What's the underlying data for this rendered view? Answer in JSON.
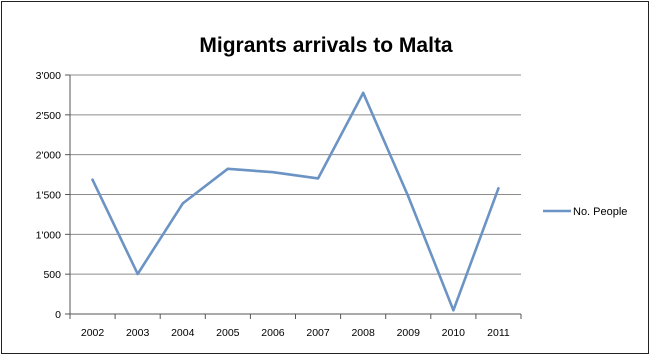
{
  "chart_data": {
    "type": "line",
    "title": "Migrants arrivals to Malta",
    "xlabel": "",
    "ylabel": "",
    "categories": [
      "2002",
      "2003",
      "2004",
      "2005",
      "2006",
      "2007",
      "2008",
      "2009",
      "2010",
      "2011"
    ],
    "series": [
      {
        "name": "No. People",
        "values": [
          1686,
          502,
          1388,
          1822,
          1780,
          1702,
          2775,
          1475,
          47,
          1577
        ]
      }
    ],
    "ylim": [
      0,
      3000
    ],
    "yticks": [
      0,
      500,
      1000,
      1500,
      2000,
      2500,
      3000
    ],
    "ytick_labels": [
      "0",
      "500",
      "1'000",
      "1'500",
      "2'000",
      "2'500",
      "3'000"
    ],
    "grid": true,
    "legend": "right",
    "line_color": "#6b93c4",
    "grid_color": "#8c8c8c"
  }
}
